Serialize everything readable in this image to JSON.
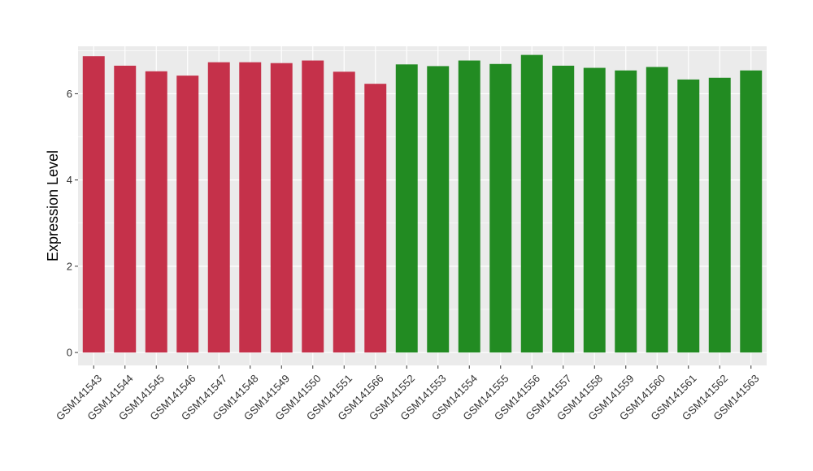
{
  "chart_data": {
    "type": "bar",
    "title": "",
    "xlabel": "",
    "ylabel": "Expression Level",
    "ylim": [
      -0.3,
      7.1
    ],
    "yticks": [
      0,
      2,
      4,
      6
    ],
    "grid": true,
    "colors": {
      "group1": "#c5314a",
      "group2": "#228b22",
      "panel": "#ebebeb",
      "gridline": "#ffffff"
    },
    "categories": [
      "GSM141543",
      "GSM141544",
      "GSM141545",
      "GSM141546",
      "GSM141547",
      "GSM141548",
      "GSM141549",
      "GSM141550",
      "GSM141551",
      "GSM141566",
      "GSM141552",
      "GSM141553",
      "GSM141554",
      "GSM141555",
      "GSM141556",
      "GSM141557",
      "GSM141558",
      "GSM141559",
      "GSM141560",
      "GSM141561",
      "GSM141562",
      "GSM141563"
    ],
    "values": [
      6.87,
      6.65,
      6.52,
      6.42,
      6.73,
      6.73,
      6.71,
      6.77,
      6.51,
      6.23,
      6.68,
      6.64,
      6.77,
      6.69,
      6.9,
      6.65,
      6.6,
      6.54,
      6.62,
      6.33,
      6.37,
      6.54
    ],
    "groups": [
      "group1",
      "group1",
      "group1",
      "group1",
      "group1",
      "group1",
      "group1",
      "group1",
      "group1",
      "group1",
      "group2",
      "group2",
      "group2",
      "group2",
      "group2",
      "group2",
      "group2",
      "group2",
      "group2",
      "group2",
      "group2",
      "group2"
    ]
  }
}
